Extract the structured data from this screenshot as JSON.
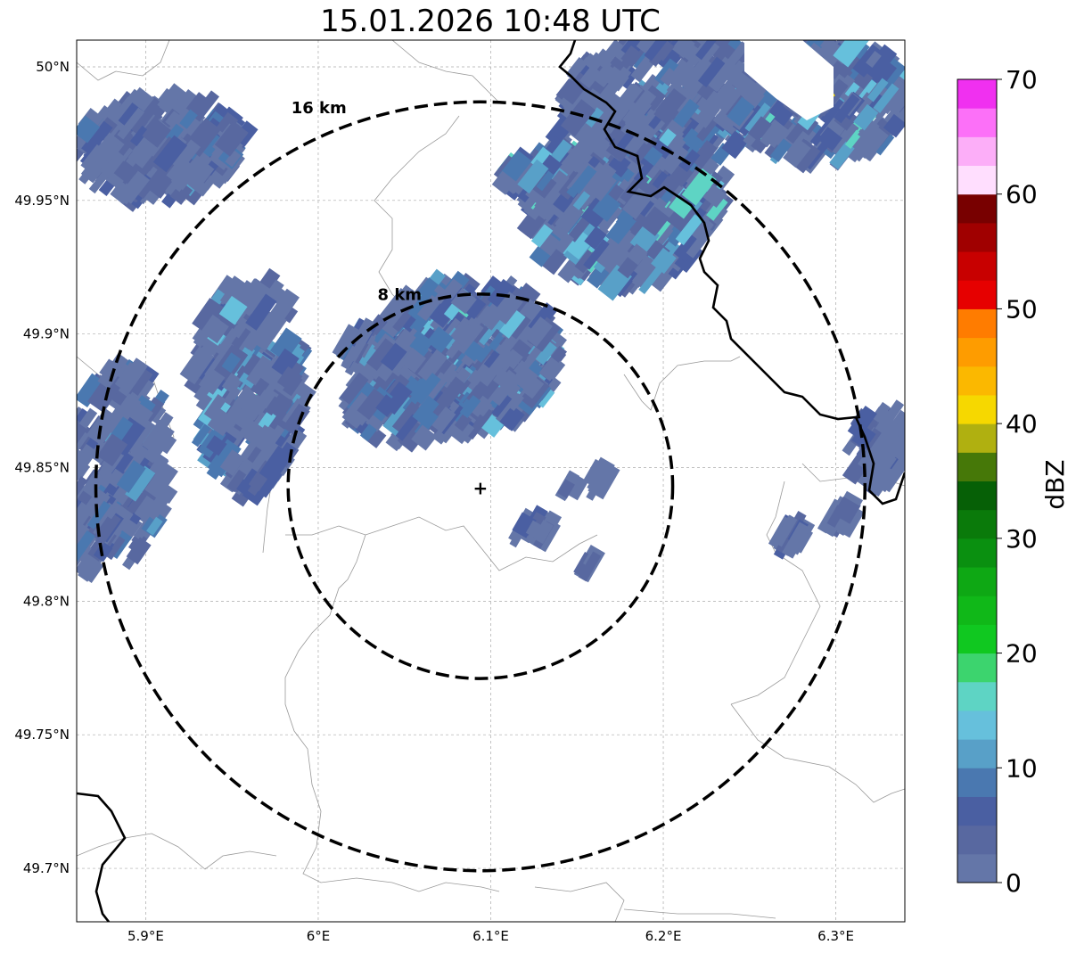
{
  "title": "15.01.2026 10:48 UTC",
  "map": {
    "lon_range": [
      5.86,
      6.34
    ],
    "lat_range": [
      49.68,
      50.01
    ],
    "lon_ticks": [
      {
        "value": 5.9,
        "label": "5.9°E"
      },
      {
        "value": 6.0,
        "label": "6°E"
      },
      {
        "value": 6.1,
        "label": "6.1°E"
      },
      {
        "value": 6.2,
        "label": "6.2°E"
      },
      {
        "value": 6.3,
        "label": "6.3°E"
      }
    ],
    "lat_ticks": [
      {
        "value": 50.0,
        "label": "50°N"
      },
      {
        "value": 49.95,
        "label": "49.95°N"
      },
      {
        "value": 49.9,
        "label": "49.9°N"
      },
      {
        "value": 49.85,
        "label": "49.85°N"
      },
      {
        "value": 49.8,
        "label": "49.8°N"
      },
      {
        "value": 49.75,
        "label": "49.75°N"
      },
      {
        "value": 49.7,
        "label": "49.7°N"
      }
    ],
    "grid": true,
    "radar_site": {
      "lon": 6.094,
      "lat": 49.843
    },
    "range_rings": [
      {
        "radius_km": 8,
        "label": "8 km"
      },
      {
        "radius_km": 16,
        "label": "16 km"
      }
    ]
  },
  "colorbar": {
    "label": "dBZ",
    "min": 0,
    "max": 70,
    "ticks": [
      0,
      10,
      20,
      30,
      40,
      50,
      60,
      70
    ],
    "colors": [
      "#6476a8",
      "#5868a0",
      "#4a5fa2",
      "#4a78b0",
      "#58a0c8",
      "#66c0dc",
      "#5ed4c4",
      "#3cd46e",
      "#10c820",
      "#10b818",
      "#0ea814",
      "#0a9010",
      "#0a7a0a",
      "#066006",
      "#467808",
      "#b0b010",
      "#f6d800",
      "#fbb800",
      "#fe9c00",
      "#ff7c00",
      "#e60000",
      "#c80000",
      "#a00000",
      "#780000",
      "#ffdefe",
      "#fcaef8",
      "#fc70f8",
      "#f030f0"
    ]
  }
}
